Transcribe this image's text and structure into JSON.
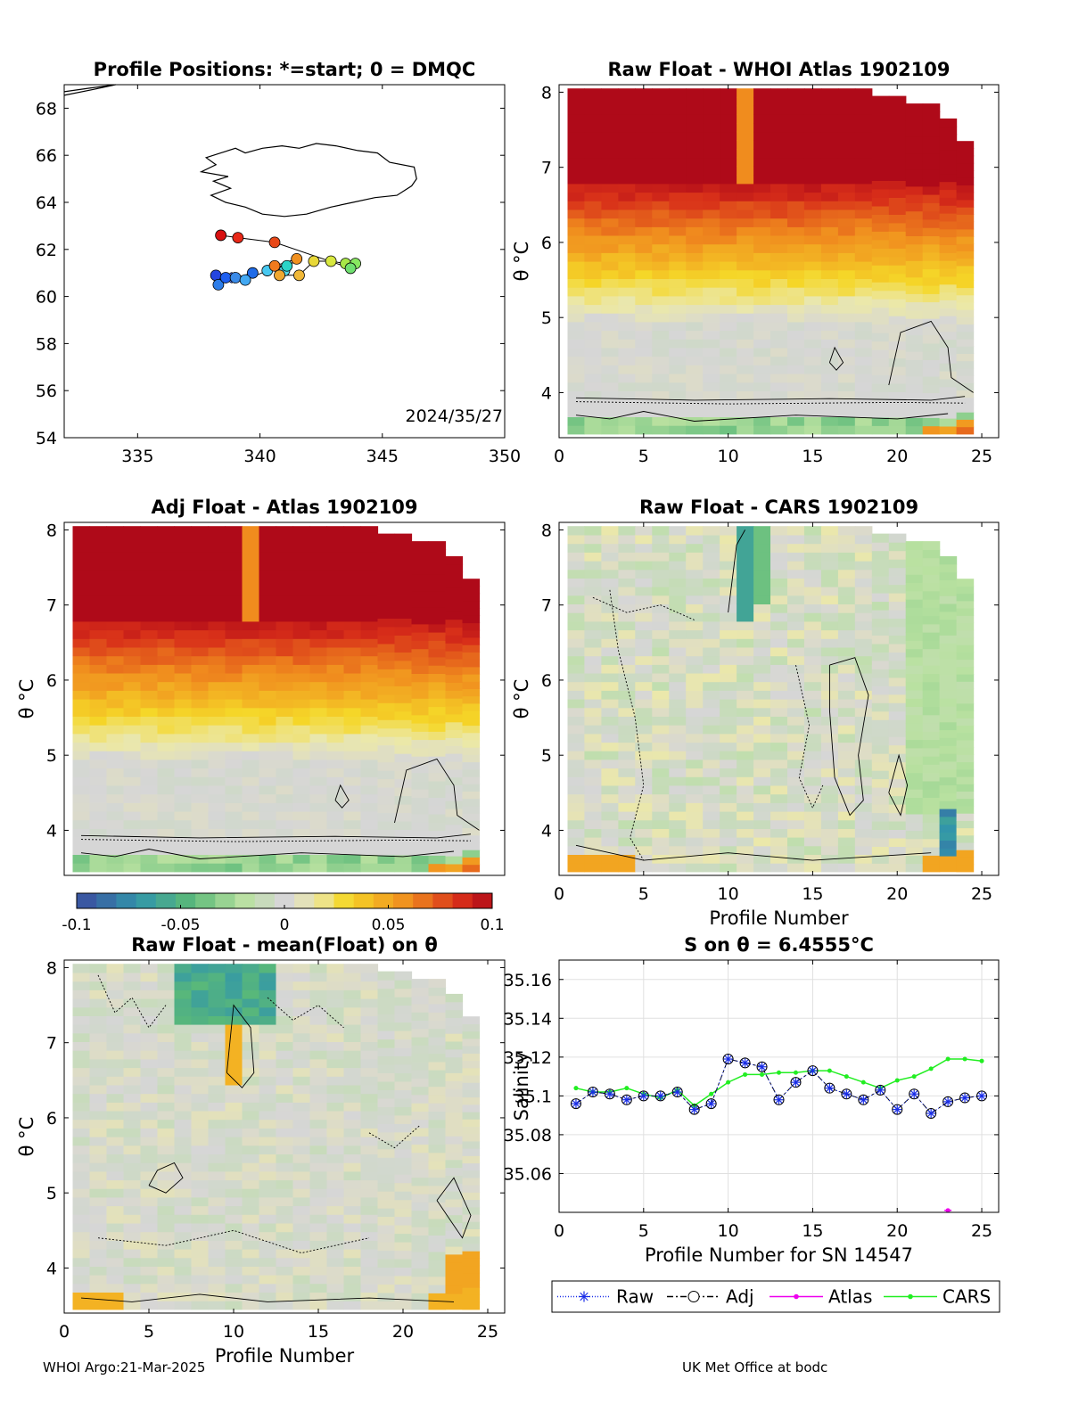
{
  "footer": {
    "left": "WHOI Argo:21-Mar-2025",
    "right": "UK Met Office at bodc"
  },
  "colorbar": {
    "ticks": [
      -0.1,
      -0.05,
      0,
      0.05,
      0.1
    ],
    "tick_labels": [
      "-0.1",
      "-0.05",
      "0",
      "0.05",
      "0.1"
    ]
  },
  "chart_data": [
    {
      "type": "scatter",
      "id": "positions",
      "title": "Profile Positions: *=start; 0 = DMQC",
      "annotation": "2024/35/27",
      "xlim": [
        332,
        350
      ],
      "ylim": [
        54,
        69
      ],
      "xticks": [
        335,
        340,
        345,
        350
      ],
      "yticks": [
        54,
        56,
        58,
        60,
        62,
        64,
        66,
        68
      ],
      "points": [
        {
          "lon": 338.9,
          "lat": 60.8,
          "color": "#3a5ef0",
          "start": true
        },
        {
          "lon": 338.2,
          "lat": 60.9,
          "color": "#2545e0"
        },
        {
          "lon": 338.3,
          "lat": 60.5,
          "color": "#2d7de8"
        },
        {
          "lon": 338.6,
          "lat": 60.8,
          "color": "#1e5ff0"
        },
        {
          "lon": 339.0,
          "lat": 60.8,
          "color": "#3a8ae8"
        },
        {
          "lon": 339.7,
          "lat": 61.0,
          "color": "#1f6be8"
        },
        {
          "lon": 339.4,
          "lat": 60.7,
          "color": "#42a8f2"
        },
        {
          "lon": 340.3,
          "lat": 61.1,
          "color": "#48c8f0"
        },
        {
          "lon": 341.0,
          "lat": 61.1,
          "color": "#55d8e8"
        },
        {
          "lon": 341.1,
          "lat": 61.3,
          "color": "#2ad4c8"
        },
        {
          "lon": 340.6,
          "lat": 61.3,
          "color": "#f07a1e"
        },
        {
          "lon": 341.5,
          "lat": 61.6,
          "color": "#f09020"
        },
        {
          "lon": 340.8,
          "lat": 60.9,
          "color": "#f0a830"
        },
        {
          "lon": 341.6,
          "lat": 60.9,
          "color": "#f0b838"
        },
        {
          "lon": 342.2,
          "lat": 61.5,
          "color": "#e8d838"
        },
        {
          "lon": 342.9,
          "lat": 61.5,
          "color": "#d8e840"
        },
        {
          "lon": 343.5,
          "lat": 61.4,
          "color": "#a8e848"
        },
        {
          "lon": 343.9,
          "lat": 61.4,
          "color": "#88e860"
        },
        {
          "lon": 343.7,
          "lat": 61.2,
          "color": "#70e070"
        },
        {
          "lon": 340.6,
          "lat": 62.3,
          "color": "#e84818"
        },
        {
          "lon": 339.1,
          "lat": 62.5,
          "color": "#e82818"
        },
        {
          "lon": 338.4,
          "lat": 62.6,
          "color": "#d81010"
        }
      ]
    },
    {
      "type": "heatmap",
      "id": "raw-whoi",
      "title": "Raw Float - WHOI Atlas  1902109",
      "ylabel": "θ °C",
      "xlim": [
        0,
        26
      ],
      "ylim": [
        3.4,
        8.1
      ],
      "xticks": [
        0,
        5,
        10,
        15,
        20,
        25
      ],
      "yticks": [
        4,
        5,
        6,
        7,
        8
      ],
      "profiles": 24
    },
    {
      "type": "heatmap",
      "id": "adj-atlas",
      "title": "Adj Float - Atlas  1902109",
      "ylabel": "θ °C",
      "xlim": [
        0,
        26
      ],
      "ylim": [
        3.4,
        8.1
      ],
      "xticks": [],
      "yticks": [
        4,
        5,
        6,
        7,
        8
      ],
      "profiles": 24
    },
    {
      "type": "heatmap",
      "id": "raw-cars",
      "title": "Raw Float - CARS  1902109",
      "ylabel": "θ °C",
      "xlabel": "Profile Number",
      "xlim": [
        0,
        26
      ],
      "ylim": [
        3.4,
        8.1
      ],
      "xticks": [
        0,
        5,
        10,
        15,
        20,
        25
      ],
      "yticks": [
        4,
        5,
        6,
        7,
        8
      ],
      "profiles": 24
    },
    {
      "type": "heatmap",
      "id": "raw-mean",
      "title": "Raw Float - mean(Float) on θ",
      "ylabel": "θ °C",
      "xlabel": "Profile Number",
      "xlim": [
        0,
        26
      ],
      "ylim": [
        3.4,
        8.1
      ],
      "xticks": [
        0,
        5,
        10,
        15,
        20,
        25
      ],
      "yticks": [
        4,
        5,
        6,
        7,
        8
      ],
      "profiles": 24
    },
    {
      "type": "line",
      "id": "salinity",
      "title": "S on θ = 6.4555°C",
      "xlabel": "Profile Number for SN 14547",
      "ylabel": "Salinity",
      "xlim": [
        0,
        26
      ],
      "ylim": [
        35.04,
        35.17
      ],
      "xticks": [
        0,
        5,
        10,
        15,
        20,
        25
      ],
      "yticks": [
        35.06,
        35.08,
        35.1,
        35.12,
        35.14,
        35.16
      ],
      "ytick_labels": [
        "35.06",
        "35.08",
        "35.1",
        "35.12",
        "35.14",
        "35.16"
      ],
      "x": [
        1,
        2,
        3,
        4,
        5,
        6,
        7,
        8,
        9,
        10,
        11,
        12,
        13,
        14,
        15,
        16,
        17,
        18,
        19,
        20,
        21,
        22,
        23,
        24,
        25
      ],
      "series": [
        {
          "name": "Raw",
          "color": "#1a2ee8",
          "marker": "star",
          "values": [
            35.096,
            35.102,
            35.101,
            35.098,
            35.1,
            35.1,
            35.102,
            35.093,
            35.096,
            35.119,
            35.117,
            35.115,
            35.098,
            35.107,
            35.113,
            35.104,
            35.101,
            35.098,
            35.103,
            35.093,
            35.101,
            35.091,
            35.097,
            35.099,
            35.1
          ]
        },
        {
          "name": "Adj",
          "color": "#000000",
          "marker": "circle",
          "values": [
            35.096,
            35.102,
            35.101,
            35.098,
            35.1,
            35.1,
            35.102,
            35.093,
            35.096,
            35.119,
            35.117,
            35.115,
            35.098,
            35.107,
            35.113,
            35.104,
            35.101,
            35.098,
            35.103,
            35.093,
            35.101,
            35.091,
            35.097,
            35.099,
            35.1
          ]
        },
        {
          "name": "Atlas",
          "color": "#ee00ee",
          "marker": "dot",
          "values": [
            null,
            null,
            null,
            null,
            null,
            null,
            null,
            null,
            null,
            null,
            null,
            null,
            null,
            null,
            null,
            null,
            null,
            null,
            null,
            null,
            null,
            null,
            35.041,
            null,
            null
          ]
        },
        {
          "name": "CARS",
          "color": "#22ee22",
          "marker": "dot",
          "values": [
            35.104,
            35.102,
            35.102,
            35.104,
            35.101,
            35.099,
            35.103,
            35.095,
            35.101,
            35.107,
            35.111,
            35.111,
            35.112,
            35.112,
            35.113,
            35.113,
            35.11,
            35.107,
            35.104,
            35.108,
            35.11,
            35.114,
            35.119,
            35.119,
            35.118
          ]
        }
      ]
    }
  ]
}
